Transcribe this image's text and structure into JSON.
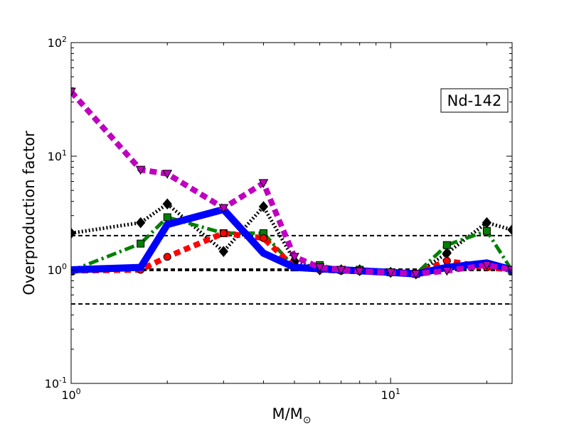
{
  "chart_data": {
    "type": "line",
    "xscale": "log",
    "yscale": "log",
    "xlim": [
      1,
      24
    ],
    "ylim": [
      0.1,
      100
    ],
    "ylabel": "Overproduction factor",
    "xlabel_main": "M/M",
    "xlabel_sub": "⊙",
    "annotation": "Nd-142",
    "x_ticks": [
      {
        "value": 1,
        "base": "10",
        "exp": "0"
      },
      {
        "value": 10,
        "base": "10",
        "exp": "1"
      }
    ],
    "y_ticks": [
      {
        "value": 0.1,
        "base": "10",
        "exp": "-1"
      },
      {
        "value": 1,
        "base": "10",
        "exp": "0"
      },
      {
        "value": 10,
        "base": "10",
        "exp": "1"
      },
      {
        "value": 100,
        "base": "10",
        "exp": "2"
      }
    ],
    "reference_lines": [
      {
        "y": 2.0,
        "width": 2
      },
      {
        "y": 1.0,
        "width": 4
      },
      {
        "y": 0.5,
        "width": 2
      }
    ],
    "series": [
      {
        "color": "#000000",
        "dash": "2,3",
        "width": 5,
        "marker": "diamond",
        "points": [
          [
            1,
            2.1
          ],
          [
            1.65,
            2.6
          ],
          [
            2,
            3.8
          ],
          [
            3,
            1.45
          ],
          [
            4,
            3.6
          ],
          [
            5,
            1.2
          ],
          [
            6,
            1.0
          ],
          [
            7,
            1.0
          ],
          [
            8,
            1.0
          ],
          [
            10,
            0.95
          ],
          [
            12,
            0.92
          ],
          [
            15,
            1.4
          ],
          [
            20,
            2.6
          ],
          [
            24,
            2.25
          ]
        ]
      },
      {
        "color": "#008000",
        "dash": "14,5,3,5",
        "width": 5,
        "marker": "square",
        "points": [
          [
            1,
            0.98
          ],
          [
            1.65,
            1.7
          ],
          [
            2,
            2.9
          ],
          [
            3,
            2.1
          ],
          [
            4,
            2.1
          ],
          [
            5,
            1.05
          ],
          [
            6,
            1.1
          ],
          [
            7,
            1.0
          ],
          [
            8,
            1.0
          ],
          [
            10,
            0.95
          ],
          [
            12,
            0.92
          ],
          [
            15,
            1.65
          ],
          [
            20,
            2.2
          ],
          [
            24,
            0.98
          ]
        ]
      },
      {
        "color": "#ff0000",
        "dash": "9,6",
        "width": 8,
        "marker": "circle",
        "points": [
          [
            1,
            0.98
          ],
          [
            1.65,
            1.0
          ],
          [
            2,
            1.3
          ],
          [
            3,
            2.1
          ],
          [
            4,
            1.9
          ],
          [
            5,
            1.05
          ],
          [
            6,
            1.0
          ],
          [
            7,
            0.98
          ],
          [
            8,
            0.97
          ],
          [
            10,
            0.95
          ],
          [
            12,
            0.92
          ],
          [
            15,
            1.2
          ],
          [
            20,
            1.05
          ],
          [
            24,
            1.0
          ]
        ]
      },
      {
        "color": "#0000ff",
        "dash": "",
        "width": 10,
        "marker": "none",
        "points": [
          [
            1,
            1.0
          ],
          [
            1.65,
            1.05
          ],
          [
            2,
            2.5
          ],
          [
            3,
            3.4
          ],
          [
            4,
            1.4
          ],
          [
            5,
            1.05
          ],
          [
            6,
            1.02
          ],
          [
            7,
            1.0
          ],
          [
            8,
            0.98
          ],
          [
            10,
            0.95
          ],
          [
            12,
            0.92
          ],
          [
            15,
            1.05
          ],
          [
            20,
            1.15
          ],
          [
            24,
            1.0
          ]
        ]
      },
      {
        "color": "#bf00bf",
        "dash": "10,6",
        "width": 8,
        "marker": "triangle-down",
        "points": [
          [
            1,
            37
          ],
          [
            1.65,
            7.6
          ],
          [
            2,
            7.0
          ],
          [
            3,
            3.5
          ],
          [
            4,
            5.8
          ],
          [
            5,
            1.3
          ],
          [
            6,
            1.05
          ],
          [
            7,
            1.0
          ],
          [
            8,
            0.97
          ],
          [
            10,
            0.95
          ],
          [
            12,
            0.92
          ],
          [
            15,
            0.98
          ],
          [
            20,
            1.1
          ],
          [
            24,
            1.0
          ]
        ]
      }
    ]
  }
}
